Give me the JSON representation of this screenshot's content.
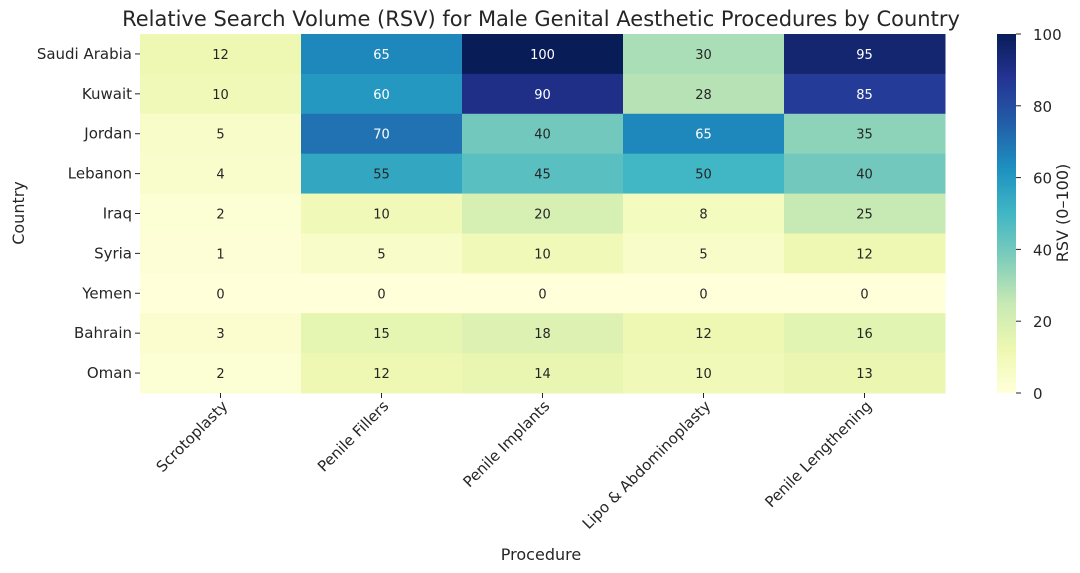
{
  "chart_data": {
    "type": "heatmap",
    "title": "Relative Search Volume (RSV) for Male Genital Aesthetic Procedures by Country",
    "xlabel": "Procedure",
    "ylabel": "Country",
    "x_categories": [
      "Scrotoplasty",
      "Penile Fillers",
      "Penile Implants",
      "Lipo & Abdominoplasty",
      "Penile Lengthening"
    ],
    "y_categories": [
      "Saudi Arabia",
      "Kuwait",
      "Jordan",
      "Lebanon",
      "Iraq",
      "Syria",
      "Yemen",
      "Bahrain",
      "Oman"
    ],
    "values": [
      [
        12,
        65,
        100,
        30,
        95
      ],
      [
        10,
        60,
        90,
        28,
        85
      ],
      [
        5,
        70,
        40,
        65,
        35
      ],
      [
        4,
        55,
        45,
        50,
        40
      ],
      [
        2,
        10,
        20,
        8,
        25
      ],
      [
        1,
        5,
        10,
        5,
        12
      ],
      [
        0,
        0,
        0,
        0,
        0
      ],
      [
        3,
        15,
        18,
        12,
        16
      ],
      [
        2,
        12,
        14,
        10,
        13
      ]
    ],
    "colorbar": {
      "label": "RSV (0–100)",
      "min": 0,
      "max": 100,
      "ticks": [
        "0",
        "20",
        "40",
        "60",
        "80",
        "100"
      ],
      "colormap": "YlGnBu"
    },
    "annotations": "cell values shown"
  }
}
